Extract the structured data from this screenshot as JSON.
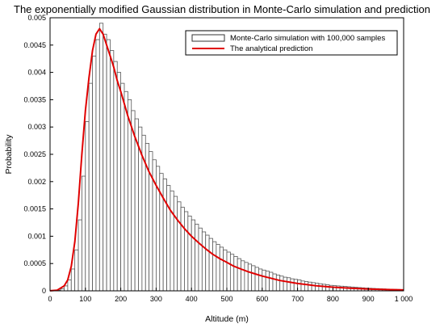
{
  "chart_data": {
    "type": "bar",
    "title": "The exponentially modified Gaussian distribution in Monte-Carlo simulation and prediction",
    "xlabel": "Altitude (m)",
    "ylabel": "Probability",
    "xlim": [
      0,
      1000
    ],
    "ylim": [
      0,
      0.005
    ],
    "x_ticks": [
      "0",
      "100",
      "200",
      "300",
      "400",
      "500",
      "600",
      "700",
      "800",
      "900",
      "1 000"
    ],
    "y_ticks": [
      "0",
      "0.0005",
      "0.001",
      "0.0015",
      "0.002",
      "0.0025",
      "0.003",
      "0.0035",
      "0.004",
      "0.0045",
      "0.005"
    ],
    "grid": false,
    "legend_position": "top-right",
    "series": [
      {
        "name": "Monte-Carlo simulation with 100,000 samples",
        "type": "histogram",
        "bin_width": 10,
        "bin_start": 0,
        "values": [
          1e-06,
          4e-06,
          1.2e-05,
          3.5e-05,
          9e-05,
          0.0002,
          0.0004,
          0.00075,
          0.0013,
          0.0021,
          0.0031,
          0.0038,
          0.0043,
          0.0046,
          0.0049,
          0.0047,
          0.0046,
          0.0044,
          0.0042,
          0.004,
          0.0038,
          0.00365,
          0.0035,
          0.0033,
          0.00315,
          0.003,
          0.00285,
          0.0027,
          0.00255,
          0.0024,
          0.00228,
          0.00215,
          0.00205,
          0.00193,
          0.00183,
          0.00173,
          0.00163,
          0.00153,
          0.00145,
          0.00137,
          0.0013,
          0.00122,
          0.00115,
          0.00108,
          0.00102,
          0.00096,
          0.0009,
          0.00085,
          0.0008,
          0.00075,
          0.00071,
          0.00067,
          0.00063,
          0.00059,
          0.00055,
          0.00052,
          0.00049,
          0.00046,
          0.00043,
          0.0004,
          0.00038,
          0.00036,
          0.00034,
          0.00031,
          0.00029,
          0.00027,
          0.00025,
          0.00024,
          0.00022,
          0.00021,
          0.0002,
          0.00018,
          0.00017,
          0.00016,
          0.00015,
          0.00014,
          0.00013,
          0.00012,
          0.00011,
          0.0001,
          9.5e-05,
          9e-05,
          8.5e-05,
          8e-05,
          7.5e-05,
          7e-05,
          6.5e-05,
          6e-05,
          5.5e-05,
          5e-05,
          4.7e-05,
          4.4e-05,
          4.1e-05,
          3.8e-05,
          3.5e-05,
          3.2e-05,
          3e-05,
          2.7e-05,
          2.5e-05,
          2.3e-05
        ],
        "color": "#555555"
      },
      {
        "name": "The analytical prediction",
        "type": "line",
        "x": [
          0,
          20,
          40,
          50,
          60,
          70,
          80,
          90,
          100,
          110,
          120,
          130,
          140,
          150,
          160,
          170,
          180,
          190,
          200,
          220,
          240,
          260,
          280,
          300,
          320,
          340,
          360,
          380,
          400,
          420,
          440,
          460,
          480,
          500,
          520,
          540,
          560,
          580,
          600,
          650,
          700,
          750,
          800,
          850,
          900,
          950,
          1000
        ],
        "y": [
          1e-06,
          1.2e-05,
          9e-05,
          0.0002,
          0.00045,
          0.0009,
          0.0016,
          0.0025,
          0.0033,
          0.0039,
          0.0044,
          0.0047,
          0.0048,
          0.0047,
          0.0045,
          0.0043,
          0.0041,
          0.00385,
          0.00365,
          0.0032,
          0.00282,
          0.00248,
          0.00218,
          0.00193,
          0.0017,
          0.00148,
          0.0013,
          0.00114,
          0.001,
          0.00088,
          0.00077,
          0.00067,
          0.00059,
          0.00052,
          0.00045,
          0.0004,
          0.00035,
          0.00031,
          0.00027,
          0.00019,
          0.000135,
          9.5e-05,
          6.7e-05,
          4.7e-05,
          3.3e-05,
          2.4e-05,
          1.7e-05
        ],
        "color": "#e00000"
      }
    ]
  }
}
